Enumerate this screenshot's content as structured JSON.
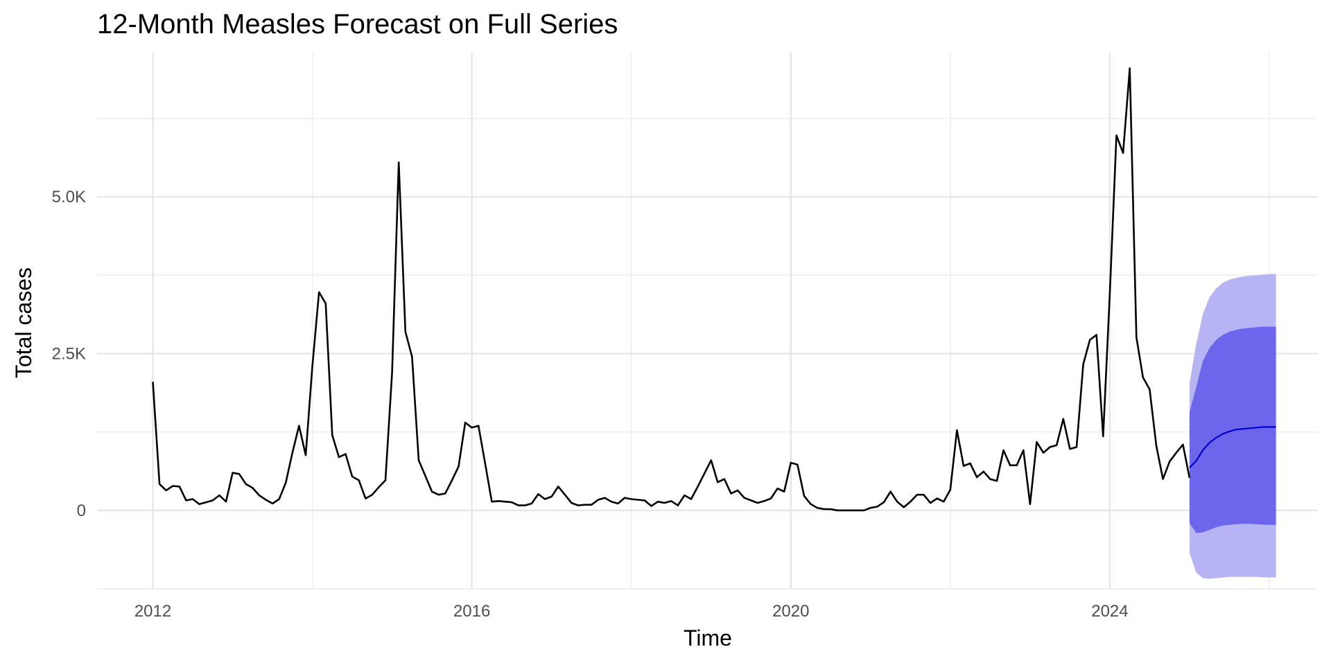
{
  "chart_data": {
    "type": "line",
    "title": "12-Month Measles Forecast on Full Series",
    "xlabel": "Time",
    "ylabel": "Total cases",
    "xlim": [
      2011.3,
      2026.6
    ],
    "ylim": [
      -1250,
      7300
    ],
    "x_ticks": [
      {
        "value": 2012,
        "label": "2012"
      },
      {
        "value": 2016,
        "label": "2016"
      },
      {
        "value": 2020,
        "label": "2020"
      },
      {
        "value": 2024,
        "label": "2024"
      }
    ],
    "y_ticks": [
      {
        "value": 0,
        "label": "0"
      },
      {
        "value": 2500,
        "label": "2.5K"
      },
      {
        "value": 5000,
        "label": "5.0K"
      }
    ],
    "grid": true,
    "colors": {
      "history": "#000000",
      "forecast_mean": "#0000cc",
      "pi80": "#6d66ed",
      "pi95": "#b7b4f4"
    },
    "series": [
      {
        "kind": "observed",
        "x_start": 2012.0,
        "x_step": 0.0833333,
        "values": [
          2050,
          420,
          320,
          390,
          380,
          160,
          180,
          100,
          130,
          160,
          240,
          140,
          600,
          580,
          420,
          360,
          240,
          170,
          110,
          180,
          440,
          920,
          1350,
          880,
          2300,
          3480,
          3300,
          1200,
          850,
          900,
          540,
          480,
          190,
          250,
          370,
          480,
          2200,
          5550,
          2850,
          2450,
          800,
          550,
          300,
          250,
          270,
          480,
          700,
          1400,
          1320,
          1350,
          750,
          140,
          150,
          140,
          130,
          80,
          80,
          110,
          260,
          180,
          220,
          380,
          250,
          120,
          80,
          90,
          90,
          170,
          200,
          140,
          110,
          200,
          180,
          170,
          160,
          70,
          140,
          120,
          150,
          80,
          240,
          180,
          380,
          590,
          800,
          450,
          500,
          270,
          320,
          200,
          160,
          120,
          150,
          190,
          350,
          300,
          760,
          730,
          230,
          100,
          40,
          20,
          20,
          0,
          0,
          0,
          0,
          0,
          40,
          60,
          130,
          300,
          140,
          50,
          140,
          250,
          250,
          120,
          190,
          140,
          330,
          1280,
          710,
          750,
          530,
          620,
          500,
          470,
          960,
          720,
          720,
          960,
          100,
          1090,
          920,
          1010,
          1040,
          1460,
          980,
          1010,
          2330,
          2720,
          2800,
          1180,
          3450,
          5980,
          5700,
          7050,
          2760,
          2120,
          1930,
          1030,
          500,
          780,
          920,
          1050,
          520
        ]
      },
      {
        "kind": "forecast",
        "x_start": 2025.0,
        "x_step": 0.0833333,
        "mean": [
          680,
          790,
          960,
          1080,
          1160,
          1220,
          1260,
          1290,
          1300,
          1310,
          1320,
          1330,
          1330,
          1330
        ],
        "lo80": [
          -200,
          -360,
          -350,
          -310,
          -270,
          -240,
          -230,
          -220,
          -215,
          -215,
          -220,
          -225,
          -230,
          -230
        ],
        "hi80": [
          1570,
          1960,
          2380,
          2590,
          2720,
          2800,
          2850,
          2880,
          2900,
          2910,
          2920,
          2930,
          2930,
          2930
        ],
        "lo95": [
          -680,
          -990,
          -1080,
          -1090,
          -1080,
          -1070,
          -1060,
          -1060,
          -1060,
          -1060,
          -1060,
          -1065,
          -1070,
          -1070
        ],
        "hi95": [
          2030,
          2650,
          3130,
          3400,
          3540,
          3630,
          3680,
          3710,
          3730,
          3740,
          3750,
          3760,
          3770,
          3770
        ]
      }
    ]
  }
}
